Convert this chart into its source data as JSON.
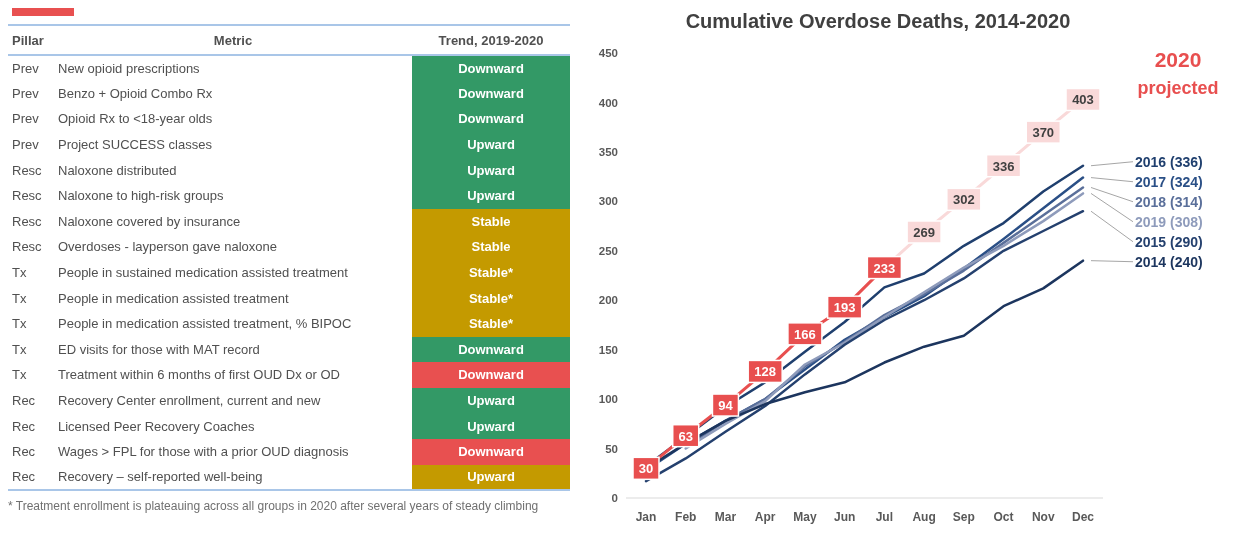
{
  "chart_data": [
    {
      "type": "other",
      "categories": [
        "Pillar",
        "Metric",
        "Trend, 2019-2020"
      ],
      "cell_labels": [
        [
          "Prev",
          "New opioid prescriptions",
          "Downward"
        ],
        [
          "Prev",
          "Benzo + Opioid Combo Rx",
          "Downward"
        ],
        [
          "Prev",
          "Opioid Rx to <18-year olds",
          "Downward"
        ],
        [
          "Prev",
          "Project SUCCESS classes",
          "Upward"
        ],
        [
          "Resc",
          "Naloxone distributed",
          "Upward"
        ],
        [
          "Resc",
          "Naloxone to high-risk groups",
          "Upward"
        ],
        [
          "Resc",
          "Naloxone covered by insurance",
          "Stable"
        ],
        [
          "Resc",
          "Overdoses - layperson gave naloxone",
          "Stable"
        ],
        [
          "Tx",
          "People in sustained medication assisted treatment",
          "Stable*"
        ],
        [
          "Tx",
          "People in medication assisted treatment",
          "Stable*"
        ],
        [
          "Tx",
          "People in medication assisted treatment, % BIPOC",
          "Stable*"
        ],
        [
          "Tx",
          "ED visits for those with MAT record",
          "Downward"
        ],
        [
          "Tx",
          "Treatment within 6 months of first OUD Dx or OD",
          "Downward"
        ],
        [
          "Rec",
          "Recovery Center enrollment, current and new",
          "Upward"
        ],
        [
          "Rec",
          "Licensed Peer Recovery Coaches",
          "Upward"
        ],
        [
          "Rec",
          "Wages > FPL for those with a prior OUD diagnosis",
          "Downward"
        ],
        [
          "Rec",
          "Recovery – self-reported well-being",
          "Upward"
        ]
      ],
      "colors": [
        "#339966",
        "#339966",
        "#339966",
        "#339966",
        "#339966",
        "#339966",
        "#c49a00",
        "#c49a00",
        "#c49a00",
        "#c49a00",
        "#c49a00",
        "#339966",
        "#e85050",
        "#339966",
        "#339966",
        "#e85050",
        "#c49a00"
      ],
      "annotations": [
        "* Treatment enrollment is plateauing across all groups in 2020 after several years of steady climbing"
      ]
    },
    {
      "type": "line",
      "title": "Cumulative Overdose Deaths, 2014-2020",
      "categories": [
        "Jan",
        "Feb",
        "Mar",
        "Apr",
        "May",
        "Jun",
        "Jul",
        "Aug",
        "Sep",
        "Oct",
        "Nov",
        "Dec"
      ],
      "ylim": [
        0,
        450
      ],
      "yticks": [
        0,
        50,
        100,
        150,
        200,
        250,
        300,
        350,
        400,
        450
      ],
      "grid": false,
      "legend": false,
      "series": [
        {
          "name": "2016 (336)",
          "color": "#1f3f6e",
          "values": [
            32,
            62,
            92,
            117,
            148,
            178,
            213,
            227,
            255,
            278,
            310,
            336
          ]
        },
        {
          "name": "2017 (324)",
          "color": "#2a4f86",
          "values": [
            28,
            55,
            78,
            100,
            130,
            160,
            183,
            204,
            232,
            262,
            293,
            324
          ]
        },
        {
          "name": "2018 (314)",
          "color": "#5a6f9a",
          "values": [
            null,
            52,
            78,
            100,
            133,
            158,
            185,
            206,
            230,
            258,
            286,
            314
          ]
        },
        {
          "name": "2019 (308)",
          "color": "#8e9bbb",
          "values": [
            null,
            50,
            75,
            98,
            135,
            157,
            183,
            208,
            233,
            255,
            280,
            308
          ]
        },
        {
          "name": "2015 (290)",
          "color": "#24406e",
          "values": [
            17,
            40,
            67,
            93,
            125,
            155,
            180,
            200,
            222,
            250,
            270,
            290
          ]
        },
        {
          "name": "2014 (240)",
          "color": "#1c355e",
          "values": [
            30,
            55,
            78,
            95,
            107,
            117,
            137,
            153,
            164,
            194,
            212,
            240
          ]
        },
        {
          "color": "#e84f4f",
          "marker": "square",
          "values": [
            30,
            63,
            94,
            128,
            166,
            193,
            233,
            null,
            null,
            null,
            null,
            null
          ],
          "value_labels": [
            "30",
            "63",
            "94",
            "128",
            "166",
            "193",
            "233",
            null,
            null,
            null,
            null,
            null
          ]
        },
        {
          "color": "#f9d9d9",
          "marker": "square",
          "values": [
            null,
            null,
            null,
            null,
            null,
            null,
            233,
            269,
            302,
            336,
            370,
            403
          ],
          "value_labels": [
            null,
            null,
            null,
            null,
            null,
            null,
            null,
            "269",
            "302",
            "336",
            "370",
            "403"
          ]
        }
      ],
      "annotations": [
        "2020",
        "projected"
      ]
    }
  ]
}
